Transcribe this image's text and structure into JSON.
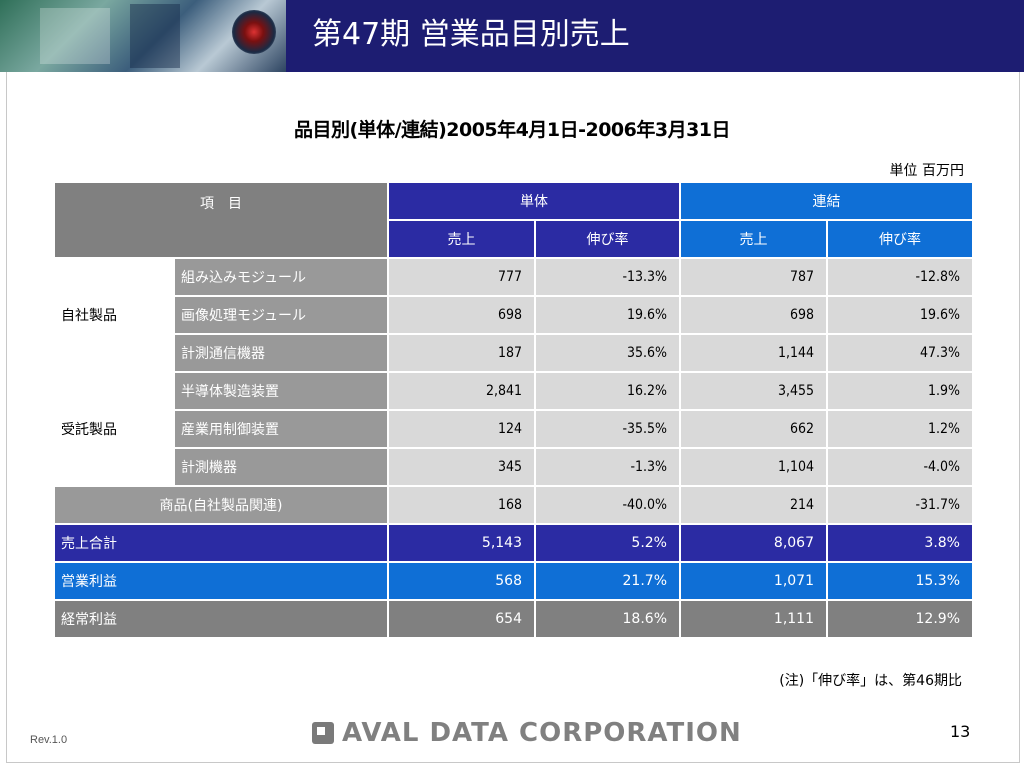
{
  "header": {
    "title": "第47期 営業品目別売上"
  },
  "subtitle": "品目別(単体/連結)2005年4月1日-2006年3月31日",
  "unit": "単位 百万円",
  "table": {
    "item_header": "項　目",
    "group_tantai": "単体",
    "group_renketsu": "連結",
    "col_sales": "売上",
    "col_growth": "伸び率",
    "categories": [
      {
        "name": "自社製品",
        "rows": [
          {
            "label": "組み込みモジュール",
            "t_sales": "777",
            "t_growth": "-13.3%",
            "r_sales": "787",
            "r_growth": "-12.8%"
          },
          {
            "label": "画像処理モジュール",
            "t_sales": "698",
            "t_growth": "19.6%",
            "r_sales": "698",
            "r_growth": "19.6%"
          },
          {
            "label": "計測通信機器",
            "t_sales": "187",
            "t_growth": "35.6%",
            "r_sales": "1,144",
            "r_growth": "47.3%"
          }
        ]
      },
      {
        "name": "受託製品",
        "rows": [
          {
            "label": "半導体製造装置",
            "t_sales": "2,841",
            "t_growth": "16.2%",
            "r_sales": "3,455",
            "r_growth": "1.9%"
          },
          {
            "label": "産業用制御装置",
            "t_sales": "124",
            "t_growth": "-35.5%",
            "r_sales": "662",
            "r_growth": "1.2%"
          },
          {
            "label": "計測機器",
            "t_sales": "345",
            "t_growth": "-1.3%",
            "r_sales": "1,104",
            "r_growth": "-4.0%"
          }
        ]
      }
    ],
    "goods": {
      "label": "商品(自社製品関連)",
      "t_sales": "168",
      "t_growth": "-40.0%",
      "r_sales": "214",
      "r_growth": "-31.7%"
    },
    "total_sales": {
      "label": "売上合計",
      "t_sales": "5,143",
      "t_growth": "5.2%",
      "r_sales": "8,067",
      "r_growth": "3.8%"
    },
    "operating_profit": {
      "label": "営業利益",
      "t_sales": "568",
      "t_growth": "21.7%",
      "r_sales": "1,071",
      "r_growth": "15.3%"
    },
    "ordinary_profit": {
      "label": "経常利益",
      "t_sales": "654",
      "t_growth": "18.6%",
      "r_sales": "1,111",
      "r_growth": "12.9%"
    }
  },
  "note": "(注)「伸び率」は、第46期比",
  "footer": {
    "logo_text": "AVAL DATA CORPORATION",
    "revision": "Rev.1.0",
    "page_number": "13"
  }
}
